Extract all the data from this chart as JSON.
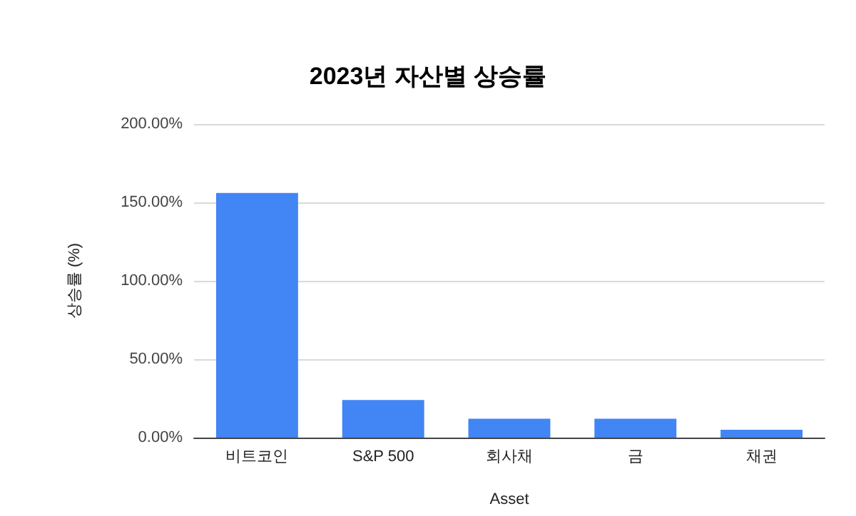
{
  "chart_data": {
    "type": "bar",
    "title": "2023년 자산별 상승률",
    "xlabel": "Asset",
    "ylabel": "상승률 (%)",
    "categories": [
      "비트코인",
      "S&P 500",
      "회사채",
      "금",
      "채권"
    ],
    "values": [
      156,
      24,
      12,
      12,
      5
    ],
    "color": "#4285f4",
    "ylim": [
      0,
      200
    ],
    "yticks": [
      {
        "value": 0,
        "label": "0.00%"
      },
      {
        "value": 50,
        "label": "50.00%"
      },
      {
        "value": 100,
        "label": "100.00%"
      },
      {
        "value": 150,
        "label": "150.00%"
      },
      {
        "value": 200,
        "label": "200.00%"
      }
    ],
    "grid": "y"
  }
}
